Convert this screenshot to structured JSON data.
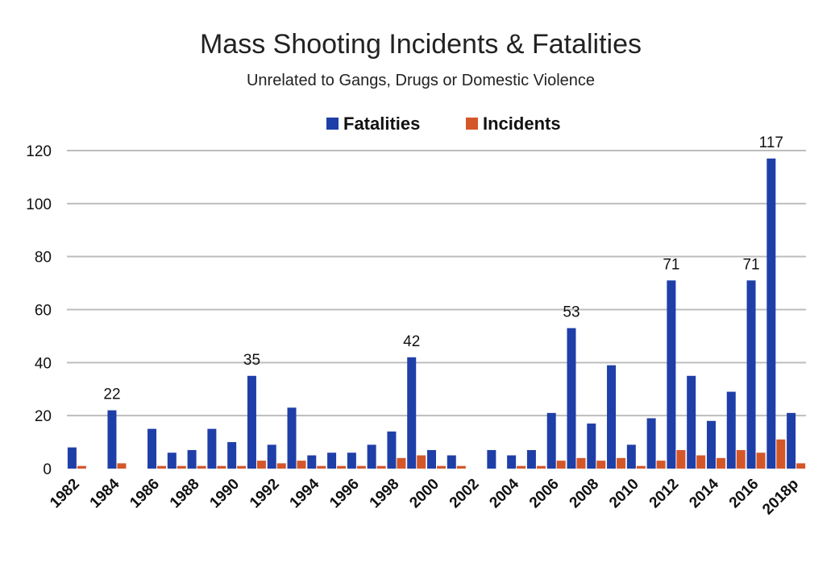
{
  "chart_data": {
    "type": "bar",
    "title": "Mass Shooting Incidents & Fatalities",
    "subtitle": "Unrelated to Gangs, Drugs or Domestic Violence",
    "xlabel": "",
    "ylabel": "",
    "ylim": [
      0,
      120
    ],
    "yticks": [
      0,
      20,
      40,
      60,
      80,
      100,
      120
    ],
    "grid": true,
    "legend_position": "top-center",
    "colors": {
      "Fatalities": "#1f3fa8",
      "Incidents": "#d4572a"
    },
    "categories": [
      "1982",
      "1983",
      "1984",
      "1985",
      "1986",
      "1987",
      "1988",
      "1989",
      "1990",
      "1991",
      "1992",
      "1993",
      "1994",
      "1995",
      "1996",
      "1997",
      "1998",
      "1999",
      "2000",
      "2001",
      "2002",
      "2003",
      "2004",
      "2005",
      "2006",
      "2007",
      "2008",
      "2009",
      "2010",
      "2011",
      "2012",
      "2013",
      "2014",
      "2015",
      "2016",
      "2017",
      "2018p"
    ],
    "tick_labels": [
      "1982",
      "",
      "1984",
      "",
      "1986",
      "",
      "1988",
      "",
      "1990",
      "",
      "1992",
      "",
      "1994",
      "",
      "1996",
      "",
      "1998",
      "",
      "2000",
      "",
      "2002",
      "",
      "2004",
      "",
      "2006",
      "",
      "2008",
      "",
      "2010",
      "",
      "2012",
      "",
      "2014",
      "",
      "2016",
      "",
      "2018p"
    ],
    "series": [
      {
        "name": "Fatalities",
        "values": [
          8,
          0,
          22,
          0,
          15,
          6,
          7,
          15,
          10,
          35,
          9,
          23,
          5,
          6,
          6,
          9,
          14,
          42,
          7,
          5,
          0,
          7,
          5,
          7,
          21,
          53,
          17,
          39,
          9,
          19,
          71,
          35,
          18,
          29,
          71,
          117,
          21
        ]
      },
      {
        "name": "Incidents",
        "values": [
          1,
          0,
          2,
          0,
          1,
          1,
          1,
          1,
          1,
          3,
          2,
          3,
          1,
          1,
          1,
          1,
          4,
          5,
          1,
          1,
          0,
          0,
          1,
          1,
          3,
          4,
          3,
          4,
          1,
          3,
          7,
          5,
          4,
          7,
          6,
          11,
          2
        ]
      }
    ],
    "data_labels": [
      {
        "series": "Fatalities",
        "category": "1984",
        "text": "22"
      },
      {
        "series": "Fatalities",
        "category": "1991",
        "text": "35"
      },
      {
        "series": "Fatalities",
        "category": "1999",
        "text": "42"
      },
      {
        "series": "Fatalities",
        "category": "2007",
        "text": "53"
      },
      {
        "series": "Fatalities",
        "category": "2012",
        "text": "71"
      },
      {
        "series": "Fatalities",
        "category": "2016",
        "text": "71"
      },
      {
        "series": "Fatalities",
        "category": "2017",
        "text": "117"
      }
    ]
  }
}
